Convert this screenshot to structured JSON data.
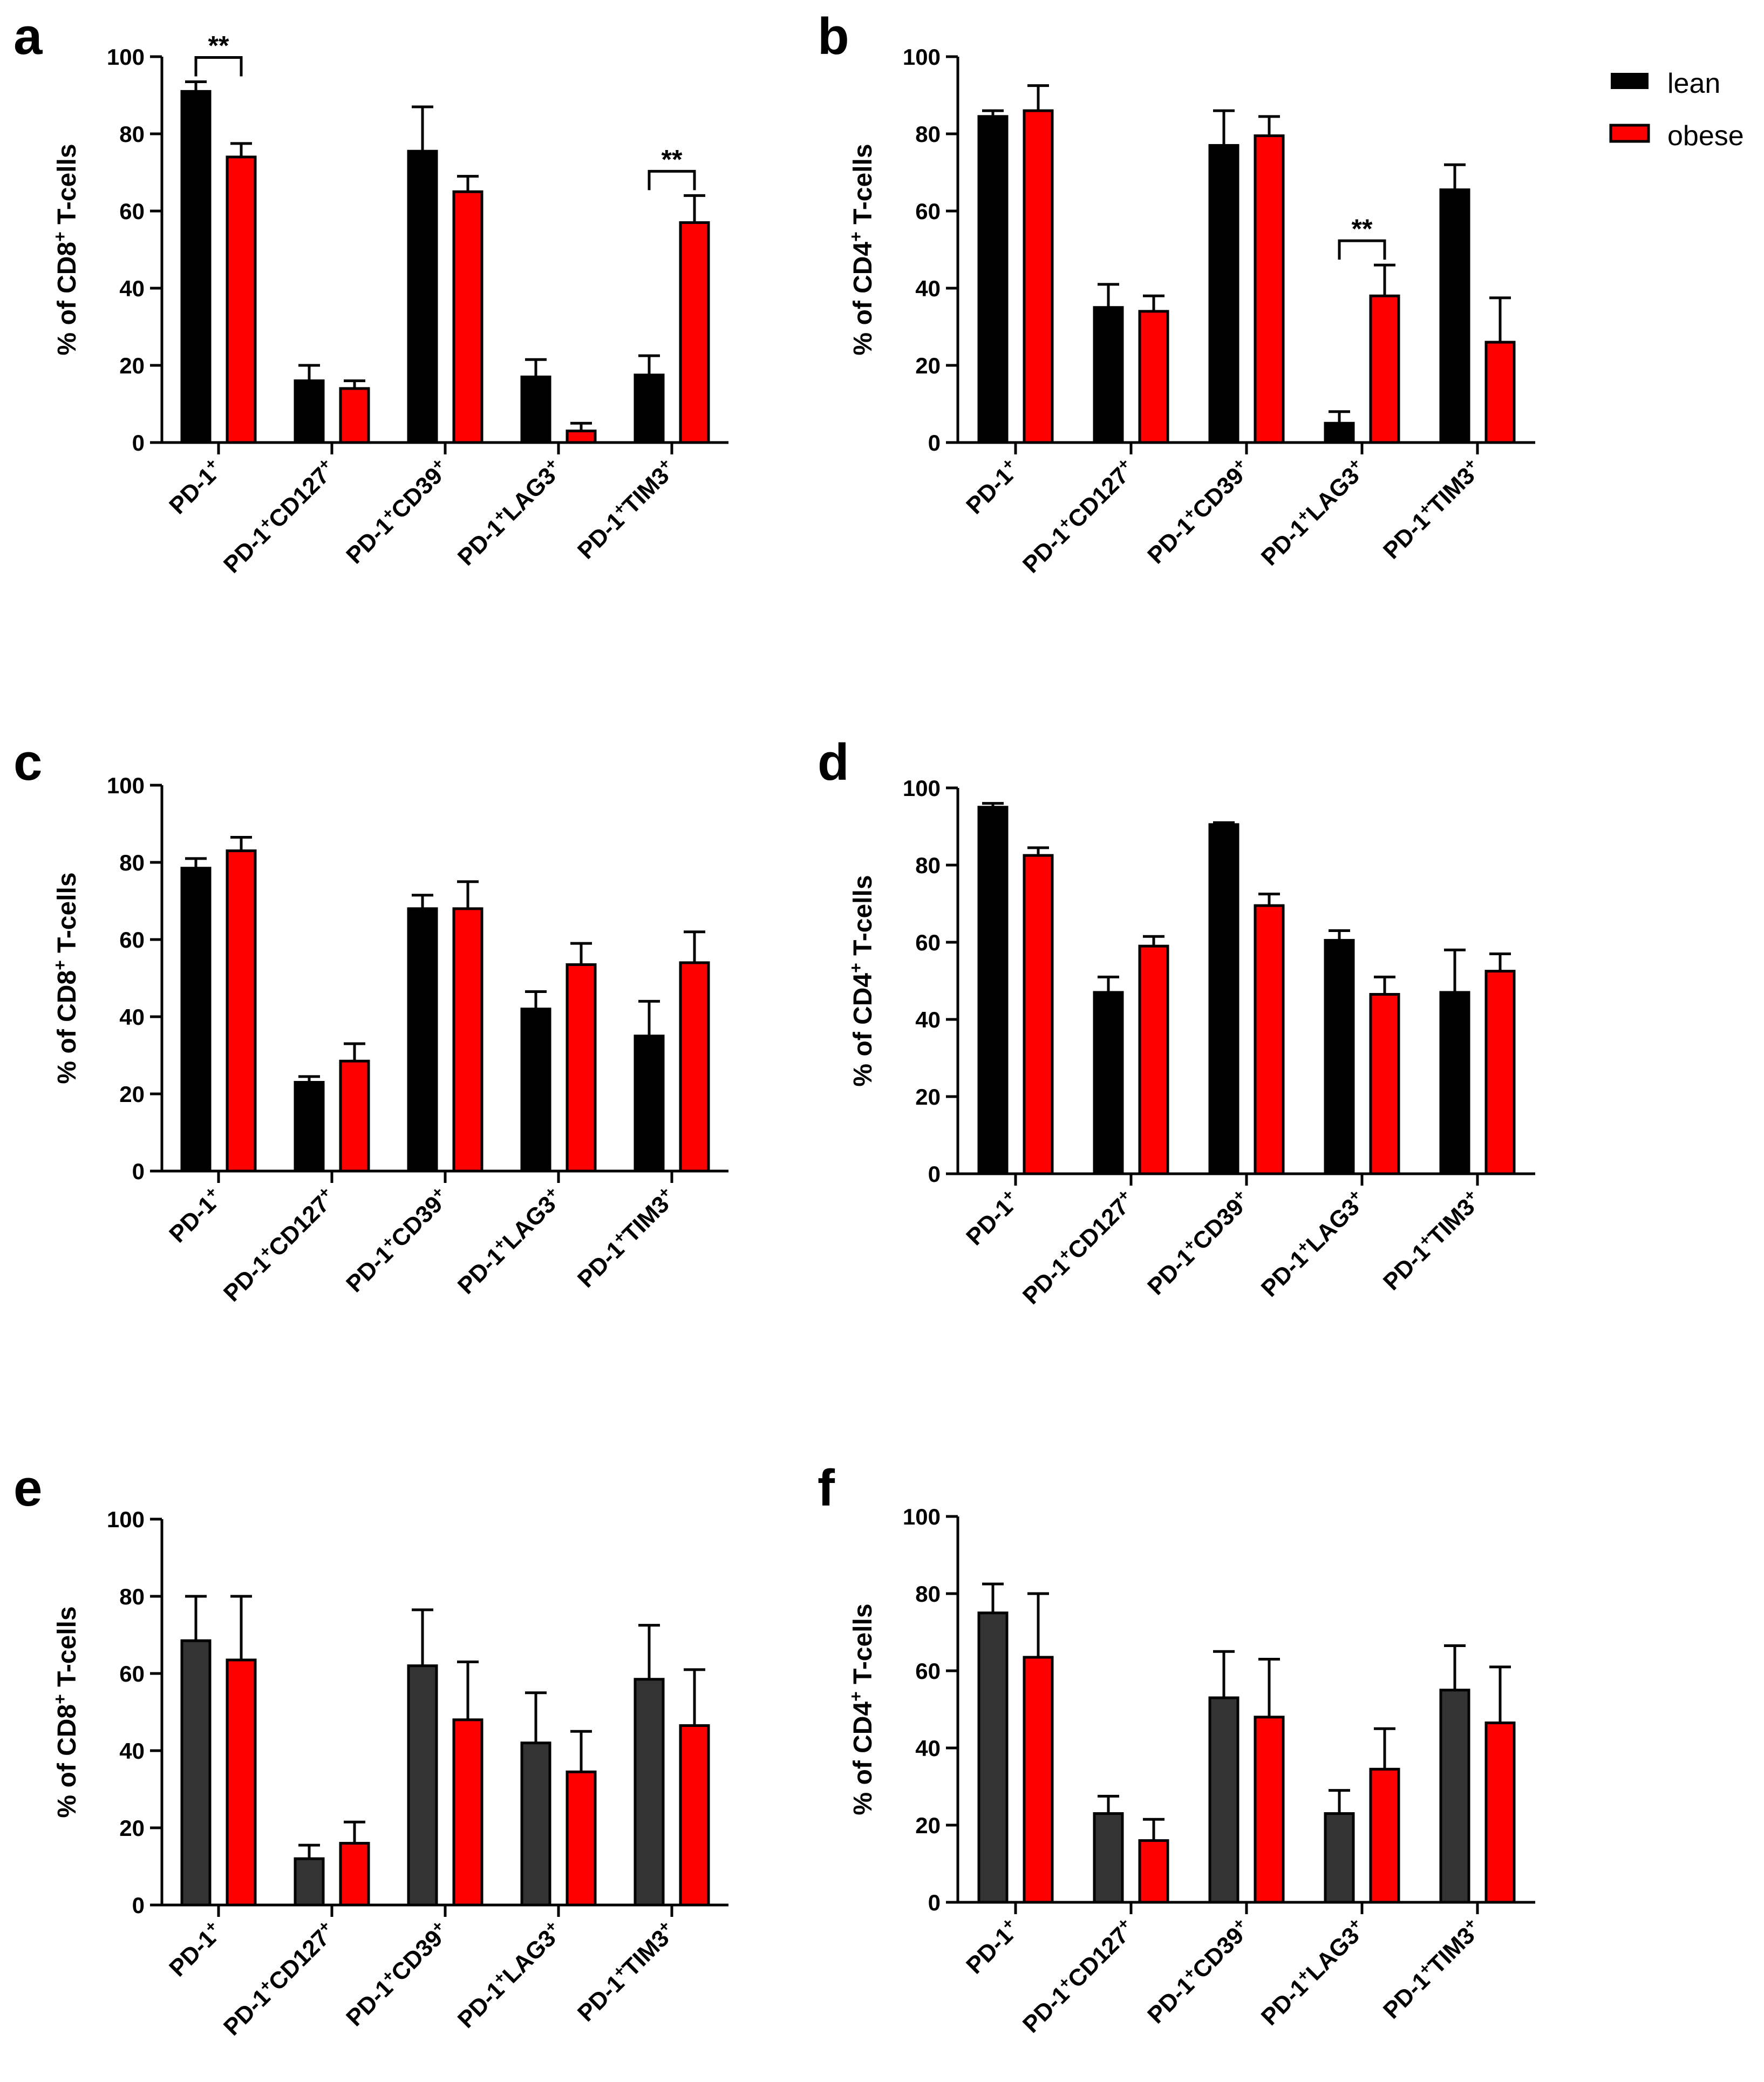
{
  "colors": {
    "lean": "#000000",
    "lean_dark": "#333333",
    "obese": "#ff0000",
    "axis": "#000000"
  },
  "legend": {
    "items": [
      {
        "label": "lean",
        "color": "#000000"
      },
      {
        "label": "obese",
        "color": "#ff0000"
      }
    ],
    "placement": "top-right"
  },
  "chart_data": [
    {
      "panel": "a",
      "type": "bar",
      "ylabel": "% of CD8+ T-cells",
      "ylabel_main": "% of CD8",
      "ylabel_sup": "+",
      "ylabel_tail": " T-cells",
      "ylim": [
        0,
        100
      ],
      "yticks": [
        "0",
        "20",
        "40",
        "60",
        "80",
        "100"
      ],
      "categories": [
        "PD-1+",
        "PD-1+CD127+",
        "PD-1+CD39+",
        "PD-1+LAG3+",
        "PD-1+TIM3+"
      ],
      "series": [
        {
          "name": "lean",
          "color": "#000000",
          "values": [
            91,
            16,
            75.5,
            17,
            17.5
          ],
          "errors": [
            2.5,
            4,
            11.5,
            4.5,
            5
          ]
        },
        {
          "name": "obese",
          "color": "#ff0000",
          "values": [
            74,
            14,
            65,
            3,
            57
          ],
          "errors": [
            3.5,
            2,
            4,
            2,
            7
          ]
        }
      ],
      "significance": [
        {
          "category": 0,
          "label": "**"
        },
        {
          "category": 4,
          "label": "**"
        }
      ]
    },
    {
      "panel": "b",
      "type": "bar",
      "ylabel": "% of CD4+ T-cells",
      "ylabel_main": "% of CD4",
      "ylabel_sup": "+",
      "ylabel_tail": " T-cells",
      "ylim": [
        0,
        100
      ],
      "yticks": [
        "0",
        "20",
        "40",
        "60",
        "80",
        "100"
      ],
      "categories": [
        "PD-1+",
        "PD-1+CD127+",
        "PD-1+CD39+",
        "PD-1+LAG3+",
        "PD-1+TIM3+"
      ],
      "series": [
        {
          "name": "lean",
          "color": "#000000",
          "values": [
            84.5,
            35,
            77,
            5,
            65.5
          ],
          "errors": [
            1.5,
            6,
            9,
            3,
            6.5
          ]
        },
        {
          "name": "obese",
          "color": "#ff0000",
          "values": [
            86,
            34,
            79.5,
            38,
            26
          ],
          "errors": [
            6.5,
            4,
            5,
            8,
            11.5
          ]
        }
      ],
      "significance": [
        {
          "category": 3,
          "label": "**"
        }
      ]
    },
    {
      "panel": "c",
      "type": "bar",
      "ylabel": "% of CD8+ T-cells",
      "ylabel_main": "% of CD8",
      "ylabel_sup": "+",
      "ylabel_tail": " T-cells",
      "ylim": [
        0,
        100
      ],
      "yticks": [
        "0",
        "20",
        "40",
        "60",
        "80",
        "100"
      ],
      "categories": [
        "PD-1+",
        "PD-1+CD127+",
        "PD-1+CD39+",
        "PD-1+LAG3+",
        "PD-1+TIM3+"
      ],
      "series": [
        {
          "name": "lean",
          "color": "#000000",
          "values": [
            78.5,
            23,
            68,
            42,
            35
          ],
          "errors": [
            2.5,
            1.5,
            3.5,
            4.5,
            9
          ]
        },
        {
          "name": "obese",
          "color": "#ff0000",
          "values": [
            83,
            28.5,
            68,
            53.5,
            54
          ],
          "errors": [
            3.5,
            4.5,
            7,
            5.5,
            8
          ]
        }
      ],
      "significance": []
    },
    {
      "panel": "d",
      "type": "bar",
      "ylabel": "% of CD4+ T-cells",
      "ylabel_main": "% of CD4",
      "ylabel_sup": "+",
      "ylabel_tail": " T-cells",
      "ylim": [
        0,
        100
      ],
      "yticks": [
        "0",
        "20",
        "40",
        "60",
        "80",
        "100"
      ],
      "categories": [
        "PD-1+",
        "PD-1+CD127+",
        "PD-1+CD39+",
        "PD-1+LAG3+",
        "PD-1+TIM3+"
      ],
      "series": [
        {
          "name": "lean",
          "color": "#000000",
          "values": [
            95,
            47,
            90.5,
            60.5,
            47
          ],
          "errors": [
            1,
            4,
            0.5,
            2.5,
            11
          ]
        },
        {
          "name": "obese",
          "color": "#ff0000",
          "values": [
            82.5,
            59,
            69.5,
            46.5,
            52.5
          ],
          "errors": [
            2,
            2.5,
            3,
            4.5,
            4.5
          ]
        }
      ],
      "significance": []
    },
    {
      "panel": "e",
      "type": "bar",
      "ylabel": "% of CD8+ T-cells",
      "ylabel_main": "% of CD8",
      "ylabel_sup": "+",
      "ylabel_tail": " T-cells",
      "ylim": [
        0,
        100
      ],
      "yticks": [
        "0",
        "20",
        "40",
        "60",
        "80",
        "100"
      ],
      "categories": [
        "PD-1+",
        "PD-1+CD127+",
        "PD-1+CD39+",
        "PD-1+LAG3+",
        "PD-1+TIM3+"
      ],
      "series": [
        {
          "name": "lean",
          "color": "#333333",
          "values": [
            68.5,
            12,
            62,
            42,
            58.5
          ],
          "errors": [
            11.5,
            3.5,
            14.5,
            13,
            14
          ]
        },
        {
          "name": "obese",
          "color": "#ff0000",
          "values": [
            63.5,
            16,
            48,
            34.5,
            46.5
          ],
          "errors": [
            16.5,
            5.5,
            15,
            10.5,
            14.5
          ]
        }
      ],
      "significance": []
    },
    {
      "panel": "f",
      "type": "bar",
      "ylabel": "% of CD4+ T-cells",
      "ylabel_main": "% of CD4",
      "ylabel_sup": "+",
      "ylabel_tail": " T-cells",
      "ylim": [
        0,
        100
      ],
      "yticks": [
        "0",
        "20",
        "40",
        "60",
        "80",
        "100"
      ],
      "categories": [
        "PD-1+",
        "PD-1+CD127+",
        "PD-1+CD39+",
        "PD-1+LAG3+",
        "PD-1+TIM3+"
      ],
      "series": [
        {
          "name": "lean",
          "color": "#333333",
          "values": [
            75,
            23,
            53,
            23,
            55
          ],
          "errors": [
            7.5,
            4.5,
            12,
            6,
            11.5
          ]
        },
        {
          "name": "obese",
          "color": "#ff0000",
          "values": [
            63.5,
            16,
            48,
            34.5,
            46.5
          ],
          "errors": [
            16.5,
            5.5,
            15,
            10.5,
            14.5
          ]
        }
      ],
      "significance": []
    }
  ]
}
